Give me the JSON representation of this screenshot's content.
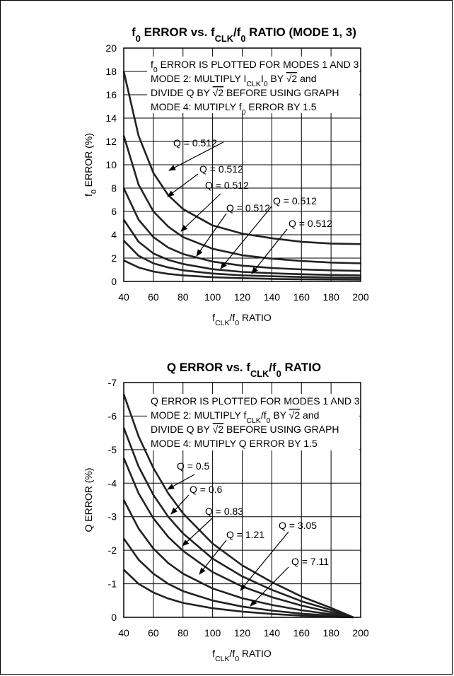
{
  "charts": [
    {
      "type": "line",
      "title": "f0 ERROR vs. fCLK/f0 RATIO (MODE 1, 3)",
      "title_parts": [
        [
          "f",
          ""
        ],
        [
          "0",
          "sub"
        ],
        [
          " ERROR vs. f",
          ""
        ],
        [
          "CLK",
          "sub"
        ],
        [
          "/f",
          ""
        ],
        [
          "0",
          "sub"
        ],
        [
          " RATIO (MODE 1, 3)",
          ""
        ]
      ],
      "xlabel_parts": [
        [
          "f",
          ""
        ],
        [
          "CLK",
          "sub"
        ],
        [
          "/f",
          ""
        ],
        [
          "0",
          "sub"
        ],
        [
          " RATIO",
          ""
        ]
      ],
      "ylabel_parts": [
        [
          "f",
          ""
        ],
        [
          "0",
          "sub"
        ],
        [
          " ERROR (%)",
          ""
        ]
      ],
      "xlim": [
        40,
        200
      ],
      "ylim": [
        0,
        20
      ],
      "x_ticks": [
        40,
        60,
        80,
        100,
        120,
        140,
        160,
        180,
        200
      ],
      "y_ticks": [
        0,
        2,
        4,
        6,
        8,
        10,
        12,
        14,
        16,
        18,
        20
      ],
      "note_lines": [
        [
          [
            "f",
            ""
          ],
          [
            "0",
            "sub"
          ],
          [
            " ERROR IS PLOTTED FOR MODES 1 AND 3",
            ""
          ]
        ],
        [
          [
            "MODE 2: MULTIPLY I",
            ""
          ],
          [
            "CLK",
            "sub"
          ],
          [
            "I",
            ""
          ],
          [
            "0",
            "sub"
          ],
          [
            " BY ",
            ""
          ],
          [
            "√2",
            "sqrt"
          ],
          [
            " and",
            ""
          ]
        ],
        [
          [
            "DIVIDE Q BY ",
            ""
          ],
          [
            "√2",
            "sqrt"
          ],
          [
            " BEFORE USING GRAPH",
            ""
          ]
        ],
        [
          [
            "MODE 4: MUTIPLY f",
            ""
          ],
          [
            "0",
            "sub"
          ],
          [
            " ERROR BY 1.5",
            ""
          ]
        ]
      ],
      "annotations": [
        "Q = 0.512",
        "Q = 0.512",
        "Q = 0.512",
        "Q = 0.512",
        "Q = 0.512",
        "Q = 0.512"
      ],
      "series": [
        {
          "x": [
            40,
            50,
            60,
            70,
            80,
            100,
            120,
            140,
            160,
            180,
            200
          ],
          "y": [
            18,
            12.5,
            9.3,
            7.4,
            6.2,
            4.8,
            4.1,
            3.7,
            3.4,
            3.25,
            3.2
          ]
        },
        {
          "x": [
            40,
            50,
            60,
            70,
            80,
            100,
            120,
            140,
            160,
            180,
            200
          ],
          "y": [
            12.5,
            8.3,
            6.0,
            4.7,
            3.8,
            2.8,
            2.25,
            1.95,
            1.75,
            1.62,
            1.55
          ]
        },
        {
          "x": [
            40,
            50,
            60,
            70,
            80,
            100,
            120,
            140,
            160,
            180,
            200
          ],
          "y": [
            8.0,
            5.3,
            3.8,
            2.9,
            2.35,
            1.7,
            1.35,
            1.15,
            1.03,
            0.95,
            0.9
          ]
        },
        {
          "x": [
            40,
            50,
            60,
            70,
            80,
            100,
            120,
            140,
            160,
            180,
            200
          ],
          "y": [
            5.3,
            3.4,
            2.4,
            1.85,
            1.5,
            1.05,
            0.82,
            0.7,
            0.62,
            0.56,
            0.52
          ]
        },
        {
          "x": [
            40,
            50,
            60,
            70,
            80,
            100,
            120,
            140,
            160,
            180,
            200
          ],
          "y": [
            3.5,
            2.2,
            1.55,
            1.2,
            0.95,
            0.68,
            0.52,
            0.44,
            0.38,
            0.34,
            0.32
          ]
        },
        {
          "x": [
            40,
            50,
            60,
            70,
            80,
            100,
            120,
            140,
            160,
            180,
            200
          ],
          "y": [
            1.8,
            1.2,
            0.85,
            0.65,
            0.52,
            0.36,
            0.28,
            0.22,
            0.19,
            0.17,
            0.15
          ]
        }
      ]
    },
    {
      "type": "line",
      "title": "Q ERROR vs. fCLK/f0 RATIO",
      "title_parts": [
        [
          "Q ERROR vs. f",
          ""
        ],
        [
          "CLK",
          "sub"
        ],
        [
          "/f",
          ""
        ],
        [
          "0",
          "sub"
        ],
        [
          " RATIO",
          ""
        ]
      ],
      "xlabel_parts": [
        [
          "f",
          ""
        ],
        [
          "CLK",
          "sub"
        ],
        [
          "/f",
          ""
        ],
        [
          "0",
          "sub"
        ],
        [
          " RATIO",
          ""
        ]
      ],
      "ylabel_parts": [
        [
          "Q ERROR (%)",
          ""
        ]
      ],
      "xlim": [
        40,
        200
      ],
      "ylim": [
        0,
        -7
      ],
      "x_ticks": [
        40,
        60,
        80,
        100,
        120,
        140,
        160,
        180,
        200
      ],
      "y_ticks": [
        0,
        -1,
        -2,
        -3,
        -4,
        -5,
        -6,
        -7
      ],
      "note_lines": [
        [
          [
            "Q ERROR IS PLOTTED FOR MODES 1 AND 3",
            ""
          ]
        ],
        [
          [
            "MODE 2: MULTIPLY f",
            ""
          ],
          [
            "CLK",
            "sub"
          ],
          [
            "/f",
            ""
          ],
          [
            "0",
            "sub"
          ],
          [
            " BY ",
            ""
          ],
          [
            "√2",
            "sqrt"
          ],
          [
            " and",
            ""
          ]
        ],
        [
          [
            "DIVIDE Q BY ",
            ""
          ],
          [
            "√2",
            "sqrt"
          ],
          [
            " BEFORE USING GRAPH",
            ""
          ]
        ],
        [
          [
            "MODE 4: MUTIPLY Q ERROR BY 1.5",
            ""
          ]
        ]
      ],
      "annotations": [
        "Q = 0.5",
        "Q = 0.6",
        "Q = 0.83",
        "Q = 1.21",
        "Q = 3.05",
        "Q = 7.11"
      ],
      "series": [
        {
          "x": [
            40,
            50,
            60,
            70,
            80,
            100,
            120,
            140,
            160,
            180,
            195
          ],
          "y": [
            -6.65,
            -5.4,
            -4.45,
            -3.7,
            -3.1,
            -2.2,
            -1.55,
            -1.05,
            -0.62,
            -0.28,
            0
          ]
        },
        {
          "x": [
            40,
            50,
            60,
            70,
            80,
            100,
            120,
            140,
            160,
            180,
            195
          ],
          "y": [
            -5.65,
            -4.5,
            -3.65,
            -3.0,
            -2.5,
            -1.75,
            -1.22,
            -0.82,
            -0.48,
            -0.22,
            0
          ]
        },
        {
          "x": [
            40,
            50,
            60,
            70,
            80,
            100,
            120,
            140,
            160,
            180,
            195
          ],
          "y": [
            -4.75,
            -3.7,
            -2.95,
            -2.4,
            -1.98,
            -1.35,
            -0.92,
            -0.6,
            -0.35,
            -0.15,
            0
          ]
        },
        {
          "x": [
            40,
            50,
            60,
            70,
            80,
            100,
            120,
            140,
            160,
            180,
            195
          ],
          "y": [
            -3.5,
            -2.65,
            -2.05,
            -1.62,
            -1.3,
            -0.86,
            -0.57,
            -0.37,
            -0.21,
            -0.09,
            0
          ]
        },
        {
          "x": [
            40,
            50,
            60,
            70,
            80,
            100,
            120,
            140,
            160,
            180,
            195
          ],
          "y": [
            -2.35,
            -1.72,
            -1.3,
            -1.0,
            -0.78,
            -0.5,
            -0.32,
            -0.2,
            -0.11,
            -0.05,
            0
          ]
        },
        {
          "x": [
            40,
            50,
            60,
            70,
            80,
            100,
            120,
            140,
            160,
            180,
            195
          ],
          "y": [
            -1.42,
            -1.0,
            -0.74,
            -0.56,
            -0.43,
            -0.27,
            -0.17,
            -0.1,
            -0.05,
            -0.02,
            0
          ]
        }
      ]
    }
  ]
}
